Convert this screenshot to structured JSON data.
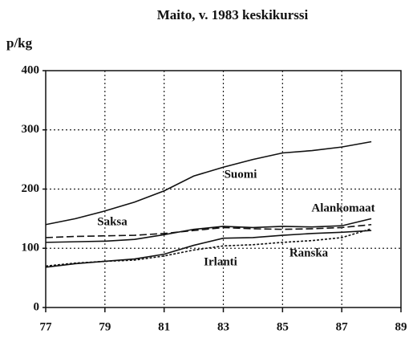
{
  "chart_data": {
    "type": "line",
    "title": "Maito, v. 1983 keskikurssi",
    "y_label": "p/kg",
    "x": [
      77,
      78,
      79,
      80,
      81,
      82,
      83,
      84,
      85,
      86,
      87,
      88
    ],
    "series": [
      {
        "name": "Suomi",
        "color": "#111111",
        "dash": "solid",
        "values": [
          140,
          150,
          163,
          178,
          197,
          222,
          237,
          250,
          261,
          265,
          271,
          280
        ]
      },
      {
        "name": "Saksa",
        "color": "#111111",
        "dash": "solid",
        "values": [
          110,
          111,
          112,
          115,
          123,
          132,
          137,
          135,
          137,
          136,
          138,
          150
        ]
      },
      {
        "name": "Alankomaat",
        "color": "#111111",
        "dash": "dashed",
        "values": [
          118,
          120,
          121,
          122,
          125,
          130,
          135,
          133,
          132,
          133,
          135,
          140
        ]
      },
      {
        "name": "Irlanti",
        "color": "#111111",
        "dash": "solid",
        "values": [
          68,
          74,
          78,
          82,
          90,
          105,
          117,
          118,
          122,
          125,
          127,
          130
        ]
      },
      {
        "name": "Ranska",
        "color": "#111111",
        "dash": "dotted",
        "values": [
          70,
          75,
          78,
          80,
          87,
          97,
          104,
          106,
          110,
          113,
          118,
          133
        ]
      }
    ],
    "xlim": [
      77,
      89
    ],
    "xticks": [
      77,
      79,
      81,
      83,
      85,
      87,
      89
    ],
    "ylim": [
      0,
      400
    ],
    "yticks": [
      0,
      100,
      200,
      300,
      400
    ],
    "grid": true
  }
}
